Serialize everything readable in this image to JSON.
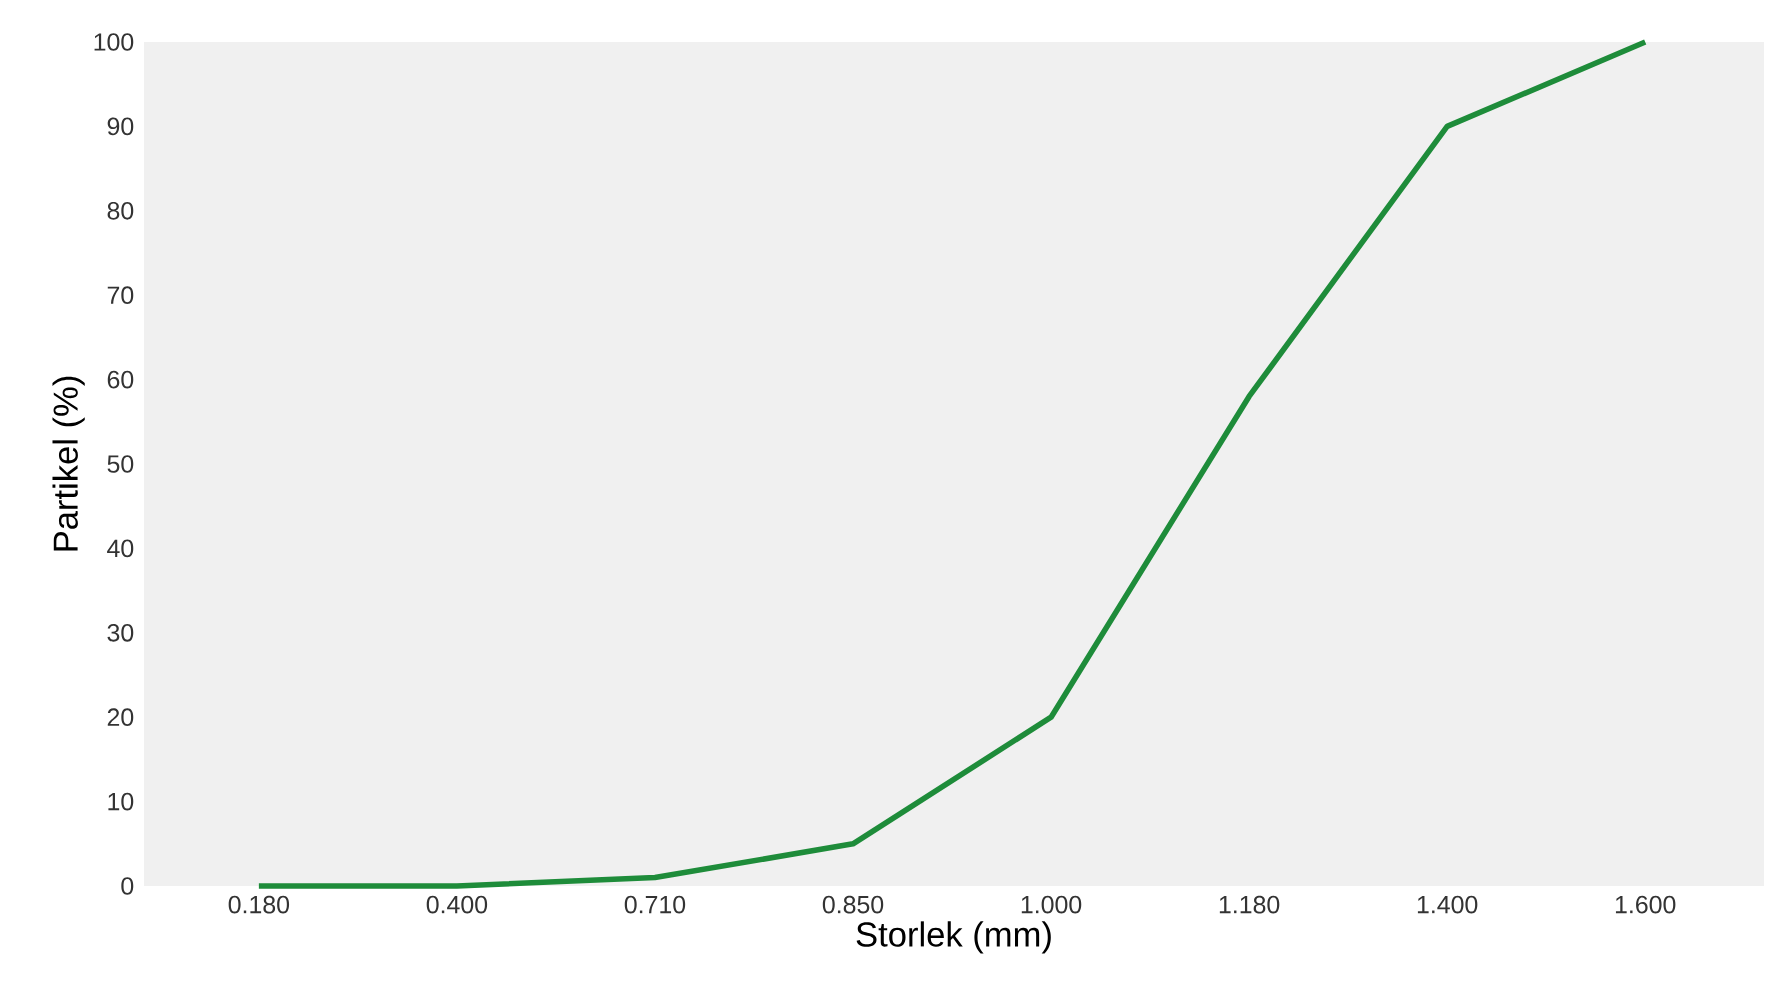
{
  "chart_data": {
    "type": "line",
    "xlabel": "Storlek (mm)",
    "ylabel": "Partikel (%)",
    "categories": [
      "0.180",
      "0.400",
      "0.710",
      "0.850",
      "1.000",
      "1.180",
      "1.400",
      "1.600"
    ],
    "series": [
      {
        "color": "#1e8c3a",
        "values": [
          0,
          0,
          1,
          5,
          20,
          58,
          90,
          100
        ]
      }
    ],
    "ylim": [
      0,
      100
    ],
    "yticks": [
      0,
      10,
      20,
      30,
      40,
      50,
      60,
      70,
      80,
      90,
      100
    ]
  }
}
